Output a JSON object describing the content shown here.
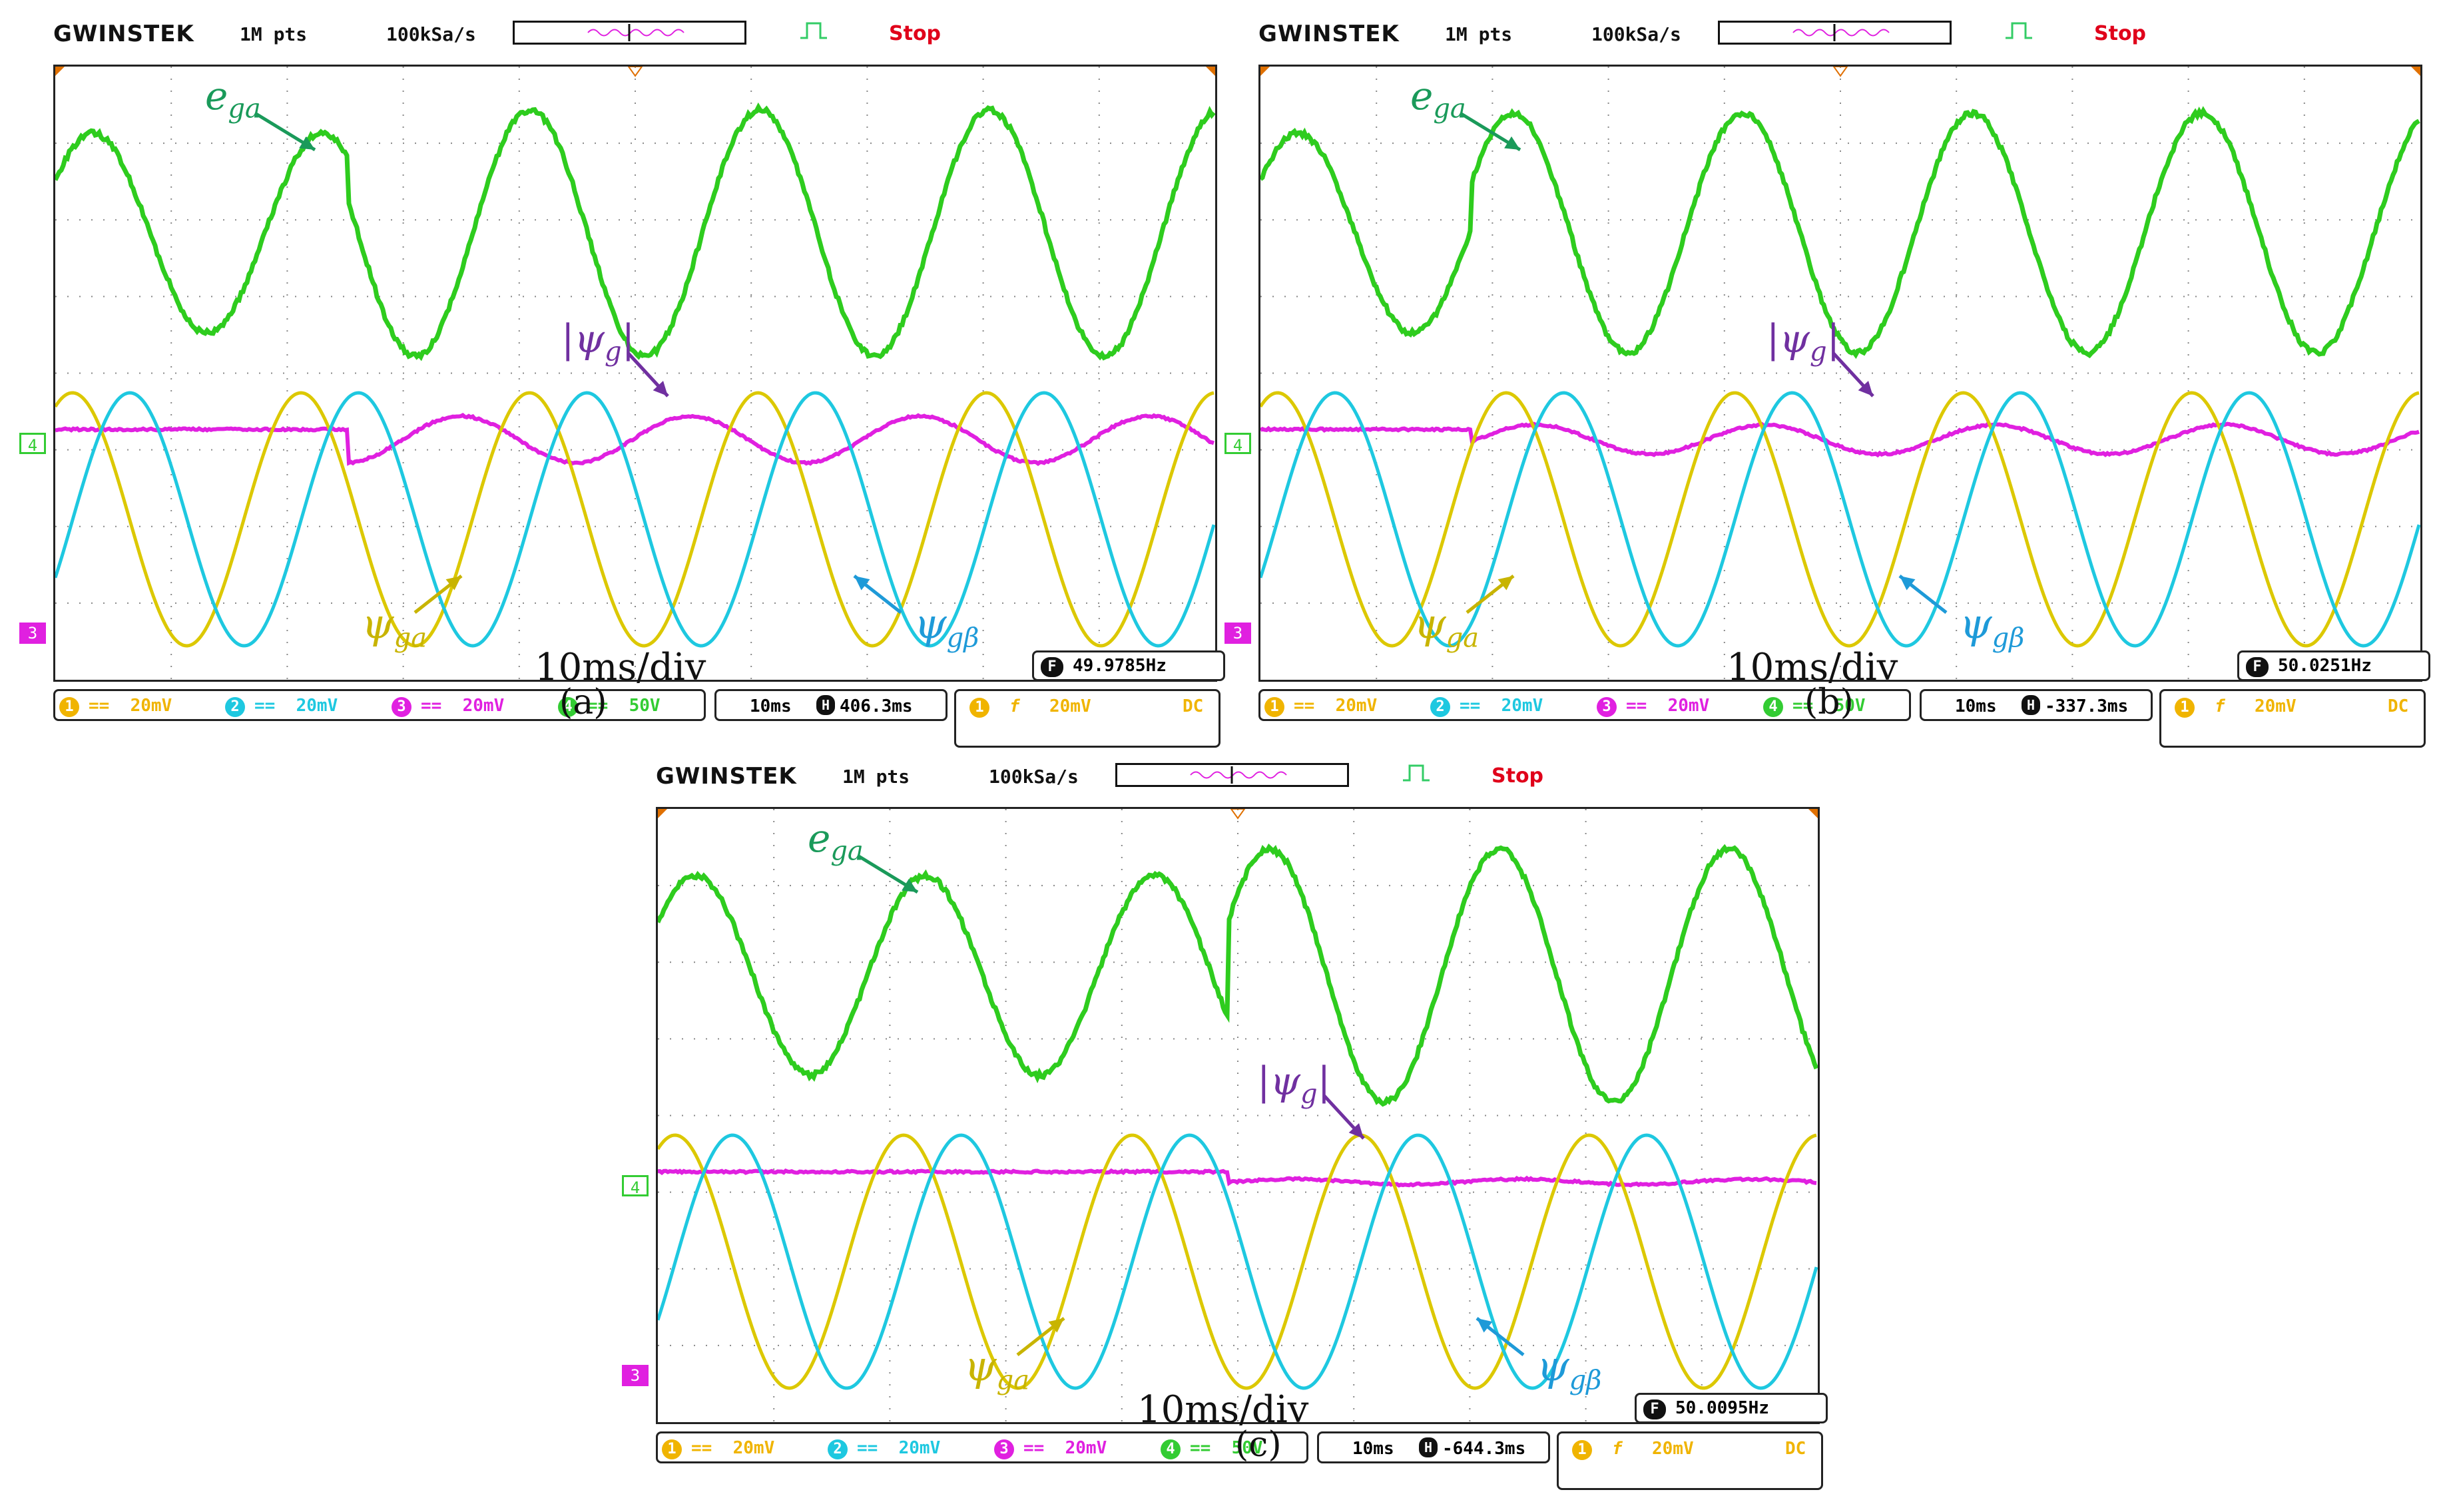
{
  "header": {
    "brand": "GWINSTEK",
    "points": "1M pts",
    "sample_rate": "100kSa/s",
    "status": "Stop"
  },
  "channels": [
    {
      "num": "1",
      "coupling": "==",
      "scale": "20mV",
      "color": "#f0b400"
    },
    {
      "num": "2",
      "coupling": "==",
      "scale": "20mV",
      "color": "#1ec8e0"
    },
    {
      "num": "3",
      "coupling": "==",
      "scale": "20mV",
      "color": "#e020e0"
    },
    {
      "num": "4",
      "coupling": "==",
      "scale": "50V",
      "color": "#33cc33"
    }
  ],
  "trigger": {
    "channel": "1",
    "edge": "f",
    "level": "20mV",
    "coupling": "DC"
  },
  "side_markers": {
    "ch4": "4",
    "ch3": "3"
  },
  "labels": {
    "ega": "e",
    "ega_sub": "ga",
    "psig": "|ψ",
    "psig_sub": "g",
    "psig_end": "|",
    "psiga": "ψ",
    "psiga_sub": "ga",
    "psigb": "ψ",
    "psigb_sub": "gβ",
    "div": "10ms/div"
  },
  "panels": [
    {
      "id": "a",
      "caption": "(a)",
      "timebase": "10ms",
      "position": "406.3ms",
      "pos_prefix": "",
      "frequency": "49.9785Hz"
    },
    {
      "id": "b",
      "caption": "(b)",
      "timebase": "10ms",
      "position": "-337.3ms",
      "pos_prefix": "",
      "frequency": "50.0251Hz"
    },
    {
      "id": "c",
      "caption": "(c)",
      "timebase": "10ms",
      "position": "-644.3ms",
      "pos_prefix": "",
      "frequency": "50.0095Hz"
    }
  ],
  "colors": {
    "green": "#2ecc1e",
    "magenta": "#e020e0",
    "yellow": "#dcc800",
    "cyan": "#1ec8e0",
    "arrow_green": "#1a9a5a",
    "arrow_purple": "#7030a0",
    "arrow_yellow": "#c8b400",
    "arrow_cyan": "#1e9ad8"
  }
}
